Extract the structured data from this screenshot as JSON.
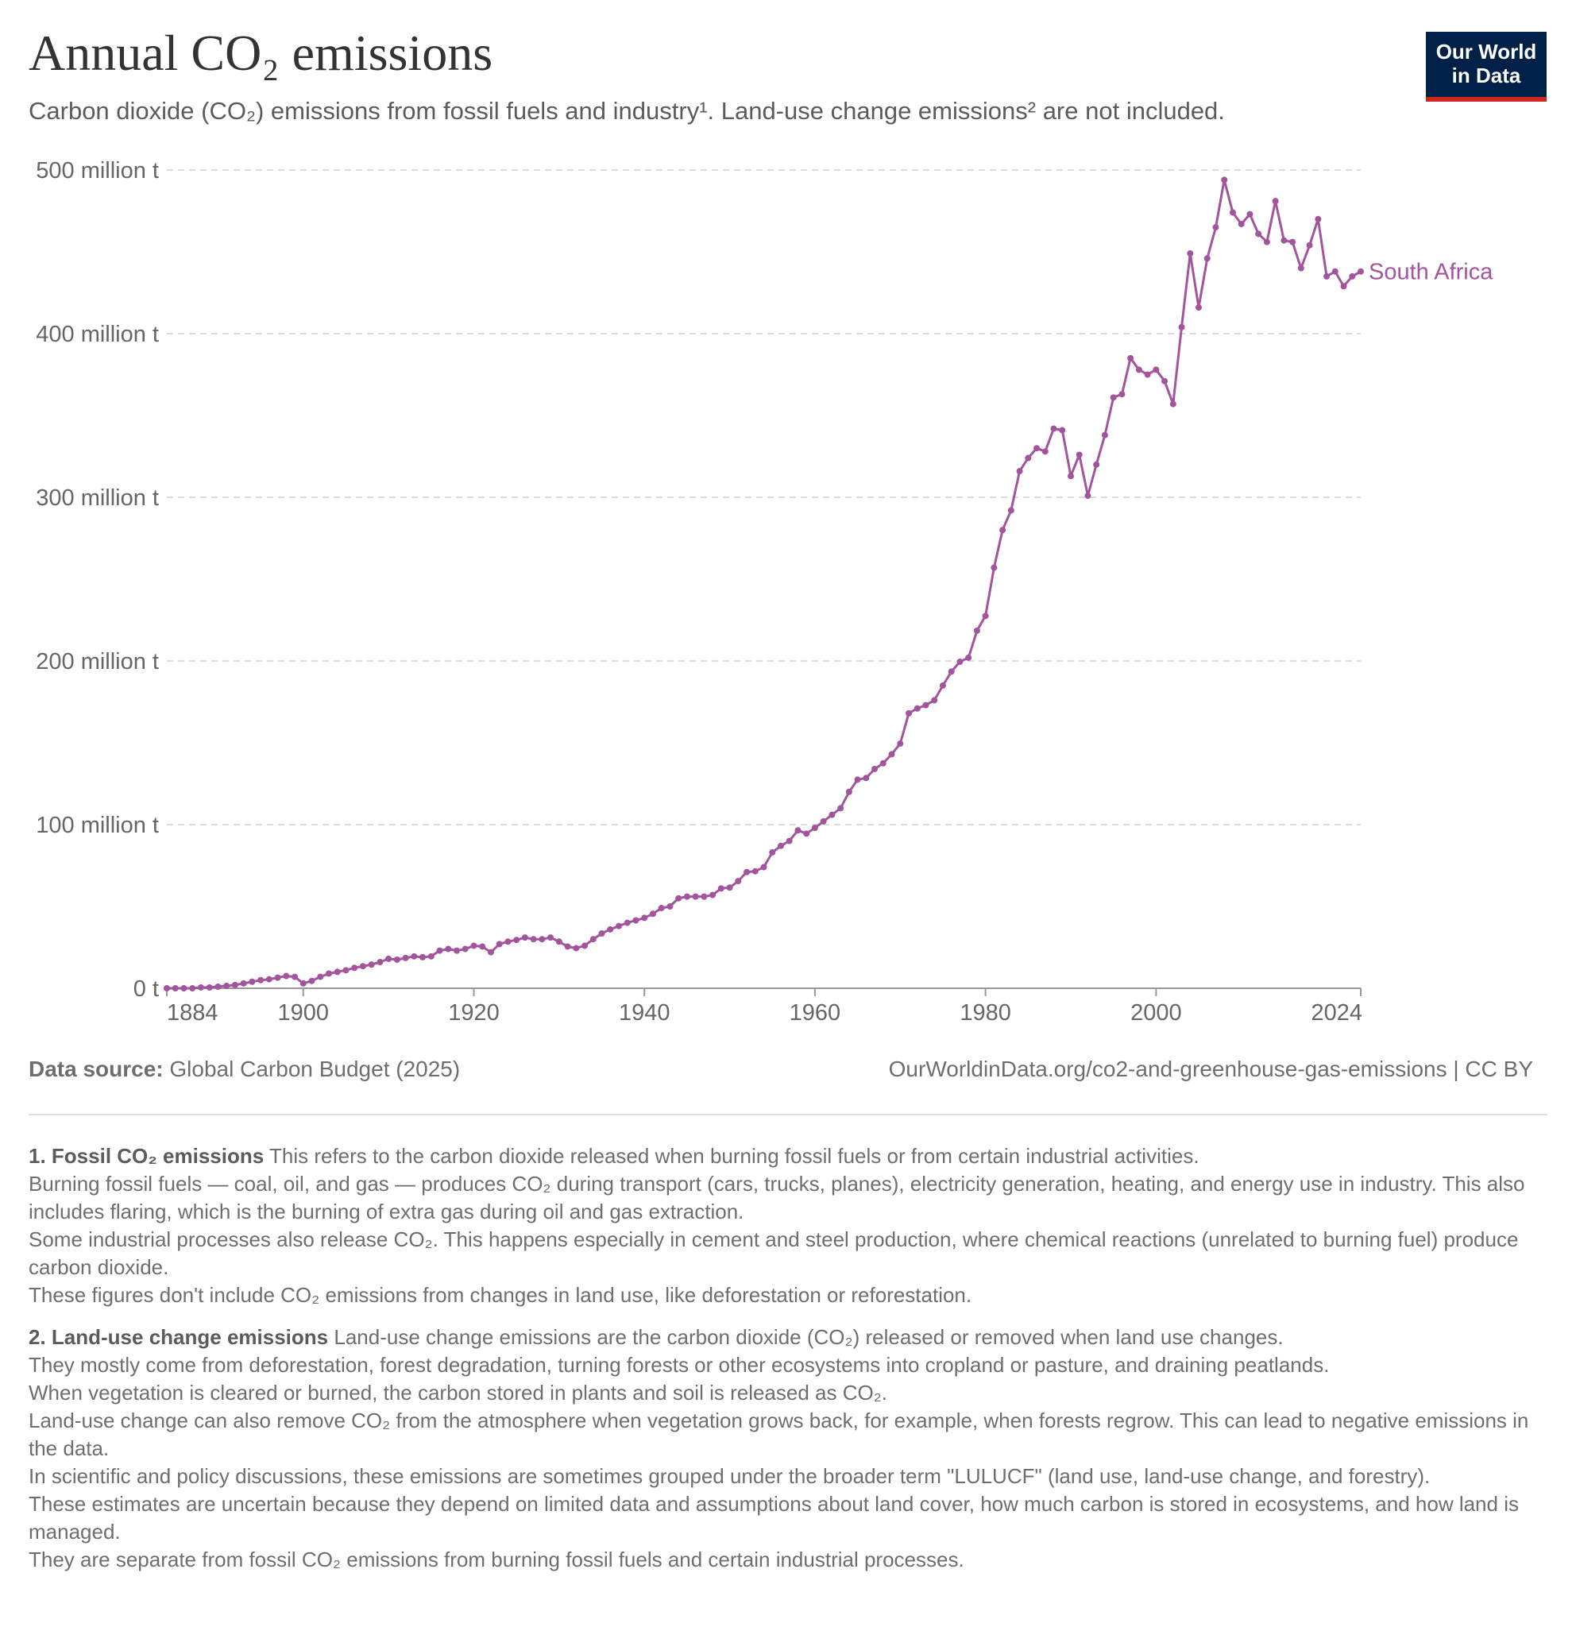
{
  "header": {
    "title": "Annual CO₂ emissions",
    "subtitle": "Carbon dioxide (CO₂) emissions from fossil fuels and industry¹. Land-use change emissions² are not included.",
    "logo_line1": "Our World",
    "logo_line2": "in Data"
  },
  "chart_data": {
    "type": "line",
    "title": "Annual CO₂ emissions",
    "ylim": [
      0,
      500000000
    ],
    "xlim": [
      1884,
      2024
    ],
    "y_ticks": [
      {
        "value": 0,
        "label": "0 t"
      },
      {
        "value": 100000000,
        "label": "100 million t"
      },
      {
        "value": 200000000,
        "label": "200 million t"
      },
      {
        "value": 300000000,
        "label": "300 million t"
      },
      {
        "value": 400000000,
        "label": "400 million t"
      },
      {
        "value": 500000000,
        "label": "500 million t"
      }
    ],
    "x_ticks": [
      "1884",
      "1900",
      "1920",
      "1940",
      "1960",
      "1980",
      "2000",
      "2024"
    ],
    "grid": "horizontal dashed",
    "series": [
      {
        "name": "South Africa",
        "color": "#a2559c",
        "x": [
          1884,
          1885,
          1886,
          1887,
          1888,
          1889,
          1890,
          1891,
          1892,
          1893,
          1894,
          1895,
          1896,
          1897,
          1898,
          1899,
          1900,
          1901,
          1902,
          1903,
          1904,
          1905,
          1906,
          1907,
          1908,
          1909,
          1910,
          1911,
          1912,
          1913,
          1914,
          1915,
          1916,
          1917,
          1918,
          1919,
          1920,
          1921,
          1922,
          1923,
          1924,
          1925,
          1926,
          1927,
          1928,
          1929,
          1930,
          1931,
          1932,
          1933,
          1934,
          1935,
          1936,
          1937,
          1938,
          1939,
          1940,
          1941,
          1942,
          1943,
          1944,
          1945,
          1946,
          1947,
          1948,
          1949,
          1950,
          1951,
          1952,
          1953,
          1954,
          1955,
          1956,
          1957,
          1958,
          1959,
          1960,
          1961,
          1962,
          1963,
          1964,
          1965,
          1966,
          1967,
          1968,
          1969,
          1970,
          1971,
          1972,
          1973,
          1974,
          1975,
          1976,
          1977,
          1978,
          1979,
          1980,
          1981,
          1982,
          1983,
          1984,
          1985,
          1986,
          1987,
          1988,
          1989,
          1990,
          1991,
          1992,
          1993,
          1994,
          1995,
          1996,
          1997,
          1998,
          1999,
          2000,
          2001,
          2002,
          2003,
          2004,
          2005,
          2006,
          2007,
          2008,
          2009,
          2010,
          2011,
          2012,
          2013,
          2014,
          2015,
          2016,
          2017,
          2018,
          2019,
          2020,
          2021,
          2022,
          2023,
          2024
        ],
        "values": [
          0,
          0,
          0,
          0,
          500000,
          500000,
          1000000,
          1500000,
          2000000,
          3000000,
          4000000,
          5000000,
          5500000,
          6500000,
          7500000,
          7000000,
          3000000,
          4500000,
          7000000,
          9000000,
          10000000,
          11000000,
          12500000,
          13500000,
          14500000,
          16000000,
          18000000,
          17500000,
          18500000,
          19500000,
          19000000,
          19500000,
          23000000,
          24000000,
          23000000,
          24000000,
          26000000,
          25500000,
          22000000,
          27000000,
          28500000,
          29500000,
          31000000,
          30000000,
          30000000,
          31000000,
          28500000,
          25500000,
          24500000,
          26000000,
          30000000,
          33500000,
          36000000,
          38000000,
          40000000,
          41500000,
          43000000,
          45500000,
          49000000,
          50000000,
          55000000,
          56000000,
          56000000,
          56000000,
          57000000,
          61000000,
          61500000,
          65500000,
          71000000,
          71500000,
          74000000,
          83000000,
          87000000,
          90000000,
          96500000,
          94500000,
          98000000,
          102000000,
          106000000,
          110000000,
          120000000,
          127500000,
          128500000,
          134000000,
          137500000,
          143000000,
          149500000,
          168000000,
          171000000,
          173000000,
          176000000,
          185000000,
          193500000,
          199500000,
          202000000,
          218500000,
          227500000,
          257000000,
          280000000,
          292000000,
          316000000,
          324000000,
          330000000,
          328000000,
          342000000,
          341000000,
          313000000,
          326000000,
          301000000,
          320000000,
          338000000,
          361000000,
          363000000,
          385000000,
          378000000,
          375000000,
          378000000,
          371000000,
          357000000,
          404000000,
          449000000,
          416000000,
          446000000,
          465000000,
          494000000,
          474000000,
          467000000,
          473000000,
          461000000,
          456000000,
          481000000,
          457000000,
          456000000,
          440000000,
          454000000,
          470000000,
          435000000,
          438000000,
          429000000,
          435000000,
          438000000
        ]
      }
    ]
  },
  "footer": {
    "source_label": "Data source:",
    "source_value": "Global Carbon Budget (2025)",
    "url": "OurWorldinData.org/co2-and-greenhouse-gas-emissions | CC BY"
  },
  "notes": [
    {
      "heading": "1. Fossil CO₂ emissions",
      "lines": [
        "This refers to the carbon dioxide released when burning fossil fuels or from certain industrial activities.",
        "Burning fossil fuels — coal, oil, and gas — produces CO₂ during transport (cars, trucks, planes), electricity generation, heating, and energy use in industry. This also includes flaring, which is the burning of extra gas during oil and gas extraction.",
        "Some industrial processes also release CO₂. This happens especially in cement and steel production, where chemical reactions (unrelated to burning fuel) produce carbon dioxide.",
        "These figures don't include CO₂ emissions from changes in land use, like deforestation or reforestation."
      ]
    },
    {
      "heading": "2. Land-use change emissions",
      "lines": [
        "Land-use change emissions are the carbon dioxide (CO₂) released or removed when land use changes.",
        "They mostly come from deforestation, forest degradation, turning forests or other ecosystems into cropland or pasture, and draining peatlands.",
        "When vegetation is cleared or burned, the carbon stored in plants and soil is released as CO₂.",
        "Land-use change can also remove CO₂ from the atmosphere when vegetation grows back, for example, when forests regrow. This can lead to negative emissions in the data.",
        "In scientific and policy discussions, these emissions are sometimes grouped under the broader term \"LULUCF\" (land use, land-use change, and forestry).",
        "These estimates are uncertain because they depend on limited data and assumptions about land cover, how much carbon is stored in ecosystems, and how land is managed.",
        "They are separate from fossil CO₂ emissions from burning fossil fuels and certain industrial processes."
      ]
    }
  ]
}
